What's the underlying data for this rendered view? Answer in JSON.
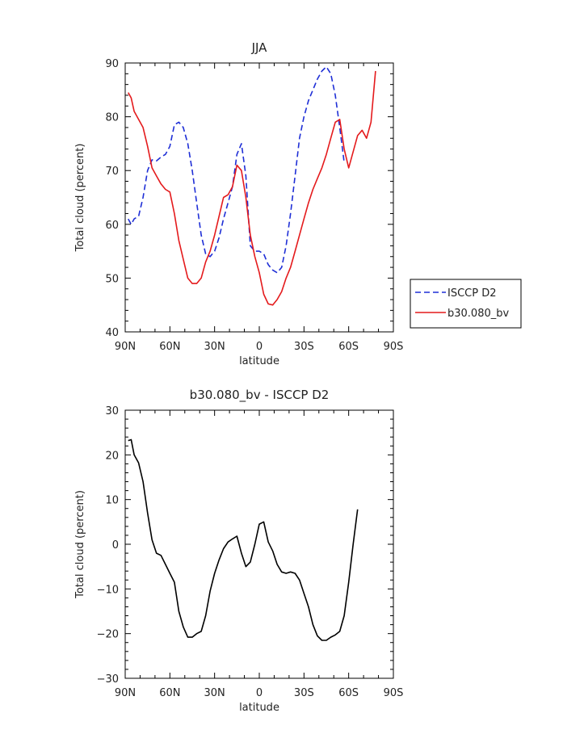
{
  "chart_data": [
    {
      "type": "line",
      "title": "JJA",
      "xlabel": "latitude",
      "ylabel": "Total cloud (percent)",
      "xlim": [
        90,
        -90
      ],
      "ylim": [
        40,
        90
      ],
      "xticks": [
        90,
        60,
        30,
        0,
        -30,
        -60,
        -90
      ],
      "xtick_labels": [
        "90N",
        "60N",
        "30N",
        "0",
        "30S",
        "60S",
        "90S"
      ],
      "yticks": [
        40,
        50,
        60,
        70,
        80,
        90
      ],
      "ytick_labels": [
        "40",
        "50",
        "60",
        "70",
        "80",
        "90"
      ],
      "legend_position": "right",
      "series": [
        {
          "name": "ISCCP D2",
          "color": "#1f2fd6",
          "dash": true,
          "x": [
            88,
            86,
            84,
            81,
            78,
            75,
            72,
            69,
            66,
            63,
            60,
            57,
            54,
            51,
            48,
            45,
            42,
            39,
            36,
            33,
            30,
            27,
            24,
            21,
            18,
            15,
            12,
            9,
            6,
            3,
            0,
            -3,
            -6,
            -9,
            -12,
            -15,
            -18,
            -21,
            -24,
            -27,
            -30,
            -33,
            -36,
            -39,
            -42,
            -45,
            -48,
            -51,
            -54,
            -57,
            -60,
            -63,
            -66
          ],
          "y": [
            61,
            60,
            61,
            61.5,
            65,
            70,
            72,
            71.8,
            72.5,
            73,
            74.5,
            78.5,
            79,
            78,
            75,
            70,
            64,
            58,
            54.5,
            54,
            55,
            57.5,
            61,
            64,
            67,
            73,
            75,
            69,
            56,
            55,
            55,
            54.5,
            52.5,
            51.5,
            51,
            52,
            56,
            62,
            69,
            76,
            80,
            83,
            85,
            87,
            88.5,
            89.3,
            88,
            84,
            78,
            71.5,
            null,
            null,
            null
          ]
        },
        {
          "name": "b30.080_bv",
          "color": "#e41a1c",
          "dash": false,
          "x": [
            88,
            86,
            84,
            81,
            78,
            75,
            72,
            69,
            66,
            63,
            60,
            57,
            54,
            51,
            48,
            45,
            42,
            39,
            36,
            33,
            30,
            27,
            24,
            21,
            18,
            15,
            12,
            9,
            6,
            3,
            0,
            -3,
            -6,
            -9,
            -12,
            -15,
            -18,
            -21,
            -24,
            -27,
            -30,
            -33,
            -36,
            -39,
            -42,
            -45,
            -48,
            -51,
            -54,
            -57,
            -60,
            -63,
            -66,
            -69,
            -72,
            -75,
            -78,
            -81,
            -84,
            -87
          ],
          "y": [
            84.5,
            83.5,
            81,
            79.5,
            78,
            74.5,
            70.5,
            69,
            67.5,
            66.5,
            66,
            62,
            57,
            53.5,
            50,
            49,
            49,
            50,
            53,
            55,
            58,
            61.5,
            65,
            65.5,
            67,
            71,
            70,
            65,
            58,
            54,
            51,
            47,
            45.2,
            45,
            46,
            47.5,
            50,
            52,
            55,
            58,
            61,
            64,
            66.5,
            68.5,
            70.5,
            73,
            76,
            79,
            79.5,
            74,
            70.5,
            73.5,
            76.5,
            77.5,
            76,
            79,
            88.5,
            null,
            null,
            null
          ]
        }
      ]
    },
    {
      "type": "line",
      "title": "b30.080_bv - ISCCP D2",
      "xlabel": "latitude",
      "ylabel": "Total cloud (percent)",
      "xlim": [
        90,
        -90
      ],
      "ylim": [
        -30,
        30
      ],
      "xticks": [
        90,
        60,
        30,
        0,
        -30,
        -60,
        -90
      ],
      "xtick_labels": [
        "90N",
        "60N",
        "30N",
        "0",
        "30S",
        "60S",
        "90S"
      ],
      "yticks": [
        -30,
        -20,
        -10,
        0,
        10,
        20,
        30
      ],
      "ytick_labels": [
        "−30",
        "−20",
        "−10",
        "0",
        "10",
        "20",
        "30"
      ],
      "series": [
        {
          "color": "#000000",
          "dash": false,
          "x": [
            88,
            86,
            84,
            81,
            78,
            75,
            72,
            69,
            66,
            63,
            60,
            57,
            54,
            51,
            48,
            45,
            42,
            39,
            36,
            33,
            30,
            27,
            24,
            21,
            18,
            15,
            12,
            9,
            6,
            3,
            0,
            -3,
            -6,
            -9,
            -12,
            -15,
            -18,
            -21,
            -24,
            -27,
            -30,
            -33,
            -36,
            -39,
            -42,
            -45,
            -48,
            -51,
            -54,
            -57,
            -60,
            -63,
            -66
          ],
          "y": [
            23.2,
            23.4,
            20,
            18.2,
            14,
            7,
            1,
            -2,
            -2.5,
            -4.5,
            -6.5,
            -8.5,
            -15,
            -18.5,
            -20.8,
            -20.8,
            -20,
            -19.5,
            -16,
            -10.5,
            -6.5,
            -3.5,
            -1,
            0.5,
            1.2,
            1.8,
            -2,
            -5,
            -4,
            0,
            4.5,
            5,
            0.5,
            -1.5,
            -4.5,
            -6.2,
            -6.5,
            -6.2,
            -6.5,
            -8,
            -11,
            -14,
            -18,
            -20.5,
            -21.5,
            -21.5,
            -20.8,
            -20.3,
            -19.5,
            -16,
            -8.5,
            0,
            7.8
          ]
        }
      ]
    }
  ]
}
